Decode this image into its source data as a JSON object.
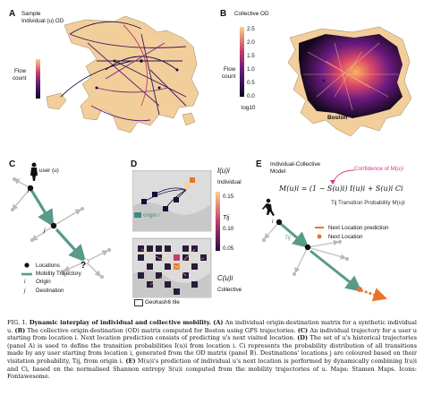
{
  "panels": {
    "a": {
      "letter": "A",
      "title_line1": "Sample",
      "title_line2": "Individual (u) OD",
      "cbar_label_1": "Flow",
      "cbar_label_2": "count"
    },
    "b": {
      "letter": "B",
      "title": "Collective OD",
      "cbar_label_1": "Flow",
      "cbar_label_2": "count",
      "ticks": [
        "2.5",
        "2.0",
        "1.5",
        "1.0",
        "0.5",
        "0.0"
      ],
      "log_label": "log10",
      "city_label": "Boston"
    },
    "c": {
      "letter": "C",
      "user_label": "user (u)",
      "node_i": "i",
      "node_j": "j",
      "question": "?",
      "legend": [
        {
          "symbol": "dot",
          "label": "Locations"
        },
        {
          "symbol": "arrow",
          "label": "Mobility Trajectory"
        },
        {
          "symbol": "i",
          "label": "Origin"
        },
        {
          "symbol": "j",
          "label": "Destination"
        }
      ]
    },
    "d": {
      "letter": "D",
      "individual_label": "Individual",
      "collective_label": "Collective",
      "origin_label": "origin i",
      "tij_label": "Tij",
      "ticks": [
        "0.15",
        "0.10",
        "0.05"
      ],
      "geohash_label": "Geohash6 tile",
      "i_label": "I(u)i",
      "c_label": "C(u)i"
    },
    "e": {
      "letter": "E",
      "title_line1": "Individual-Collective",
      "title_line2": "Model",
      "confidence_label": "Confidence of M(u)i",
      "formula": "M(u)i = (1 − S(u)i) I(u)i + S(u)i Ci",
      "transition_label": "Tij Transition Probability M(u)i",
      "next_pred_label": "Next Location prediction",
      "next_loc_label": "Next Location",
      "node_i": "i",
      "tij": "Tij"
    }
  },
  "caption": {
    "fig": "FIG. 1.",
    "title": "Dynamic interplay of individual and collective mobility.",
    "a": "(A)",
    "a_text": "An individual origin-destination matrix for a synthetic individual u.",
    "b": "(B)",
    "b_text": "The collective origin-destination (OD) matrix computed for Boston using GPS trajectories.",
    "c": "(C)",
    "c_text": "An individual trajectory for a user u starting from location i. Next location prediction consists of predicting u's next visited location.",
    "d": "(D)",
    "d_text": "The set of u's historical trajectories (panel A) is used to define the transition probabilities I(u)i from location i. Ci represents the probability distribution of all transitions made by any user starting from location i, generated from the OD matrix (panel B). Destinations' locations j are coloured based on their visitation probability, Tij, from origin i.",
    "e": "(E)",
    "e_text": "M(u)i's prediction of individual u's next location is performed by dynamically combining I(u)i and Ci, based on the normalised Shannon entropy S(u)i computed from the mobility trajectories of u. Maps: Stamen Maps. Icons: Fontawesome."
  },
  "colors": {
    "land": "#f2cf9a",
    "water": "#ffffff",
    "teal": "#5a9a8a",
    "orange": "#e8742a",
    "pink": "#d23a8a",
    "dark": "#1a1a2a"
  }
}
